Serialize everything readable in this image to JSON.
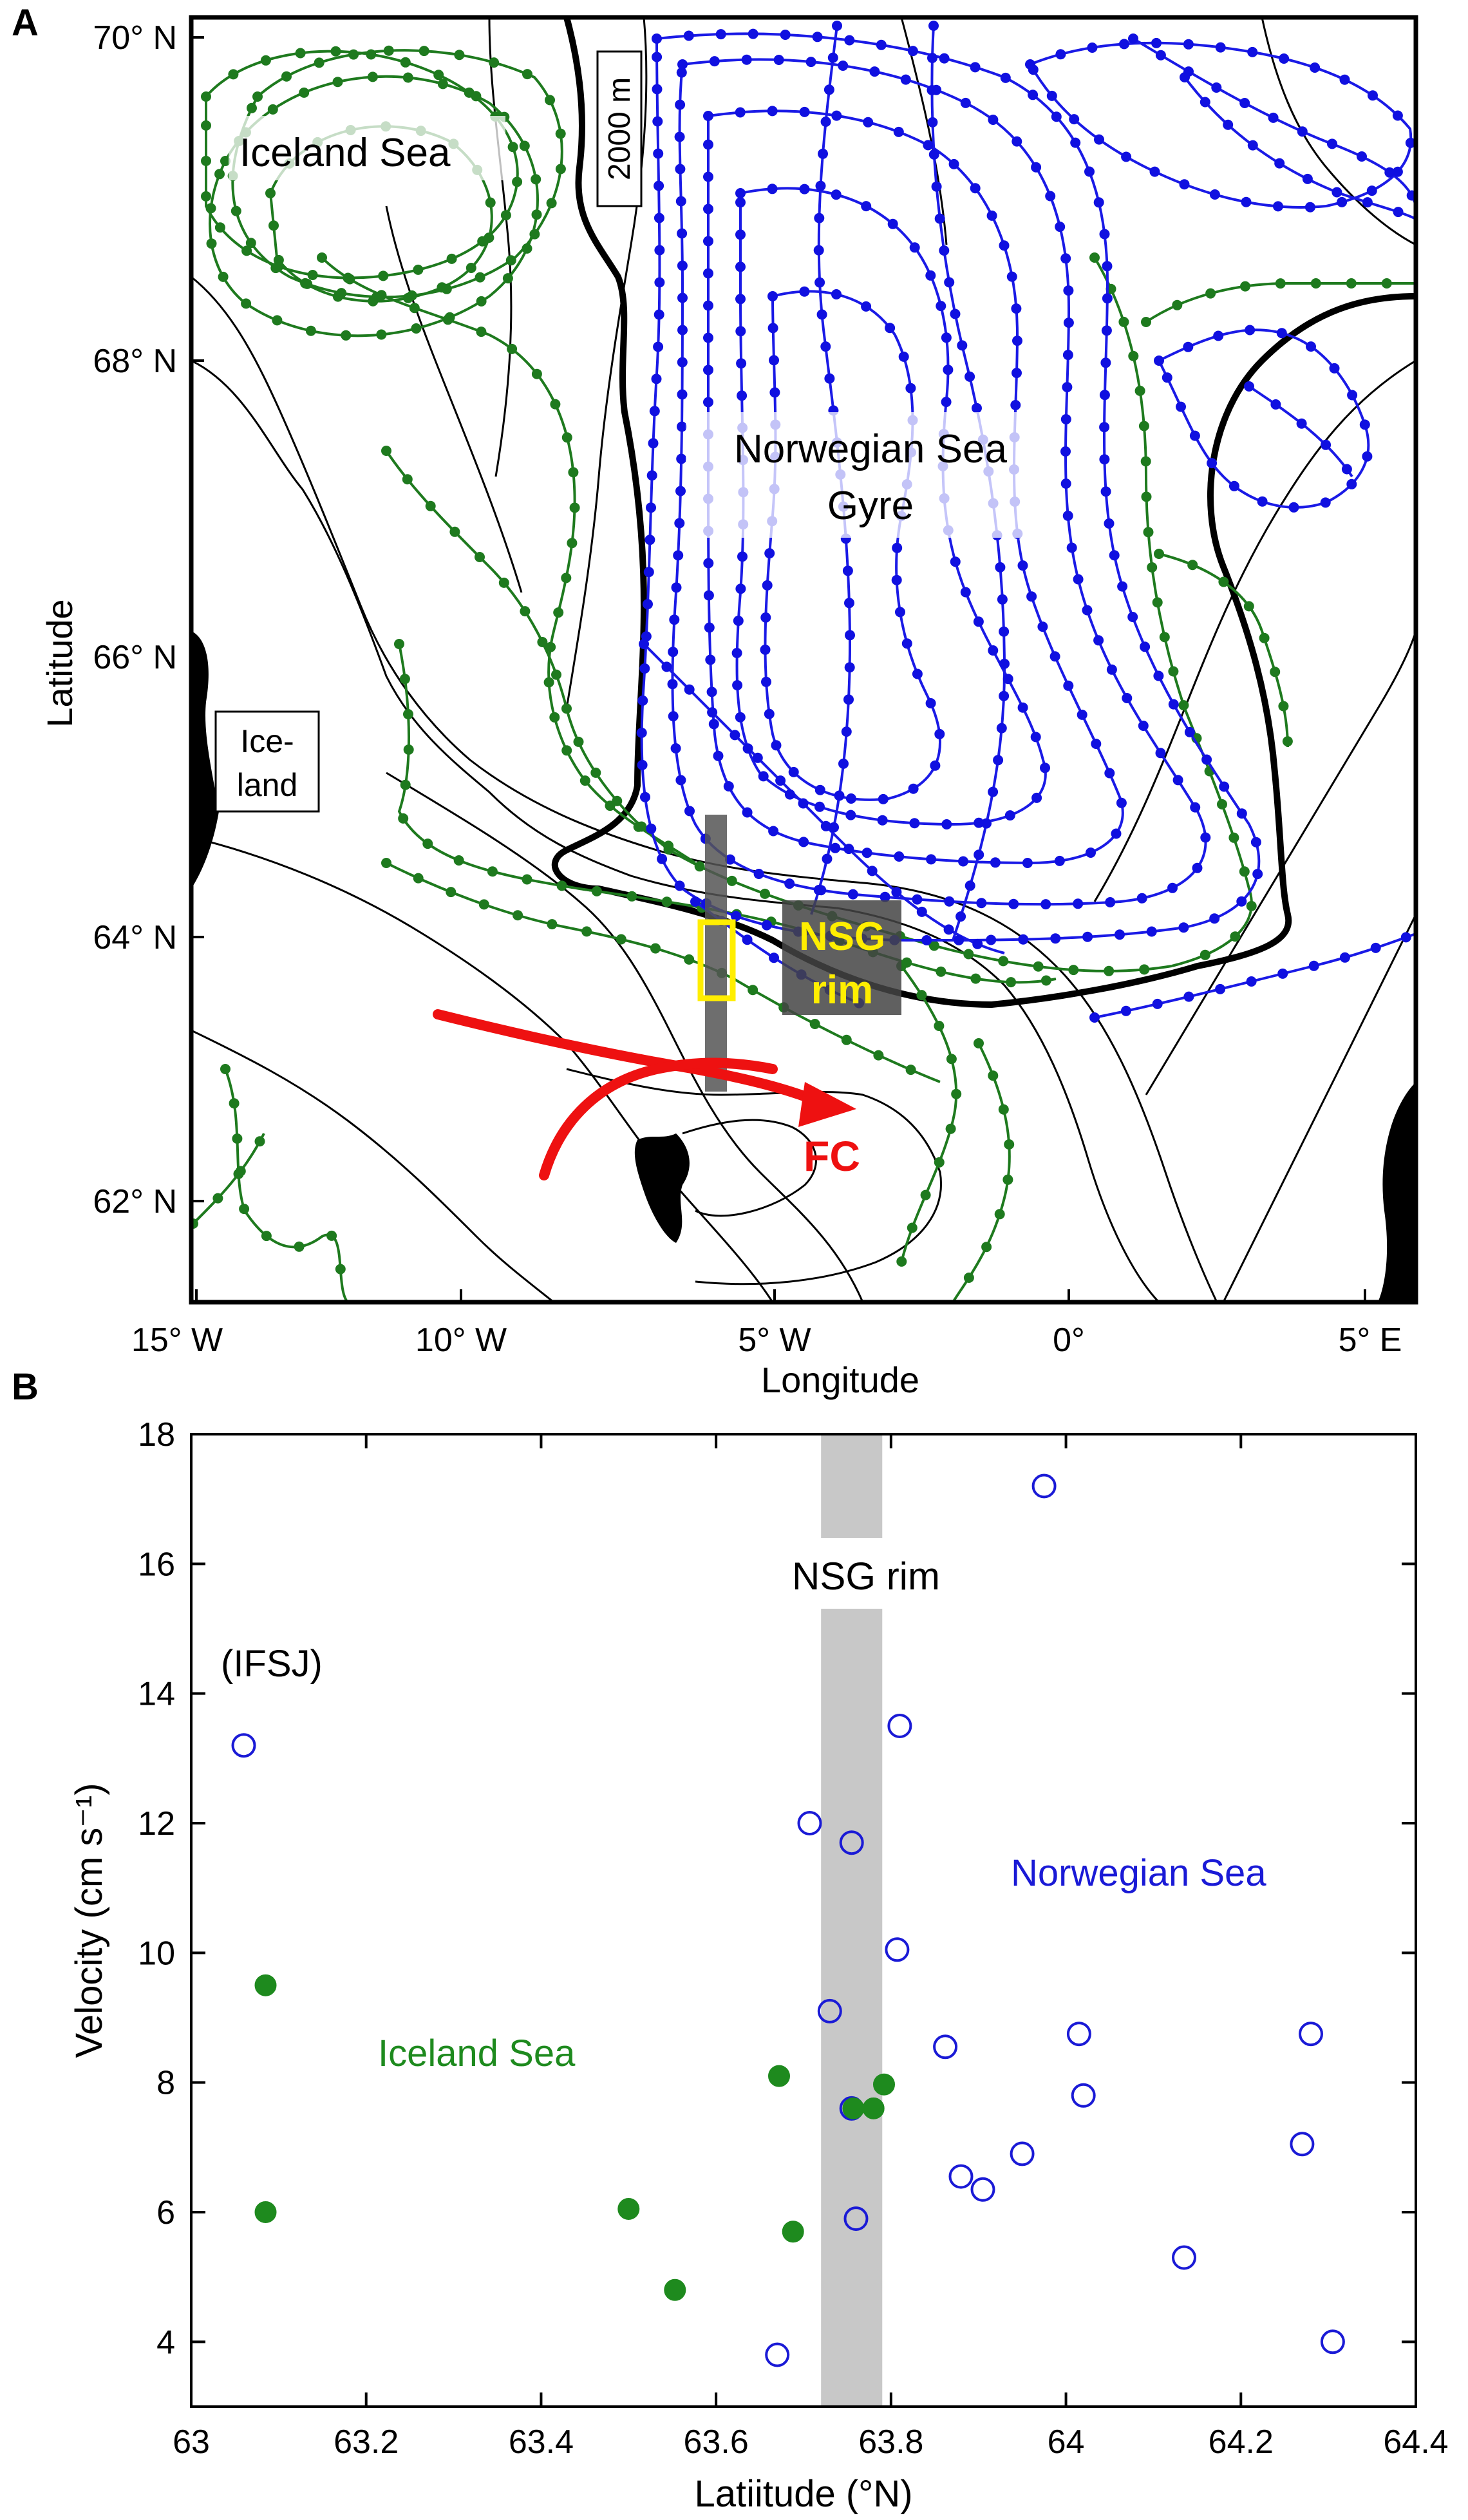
{
  "panel_a": {
    "label": "A",
    "xlabel": "Longitude",
    "ylabel": "Latitude",
    "x_ticks": [
      "15° W",
      "10° W",
      "5° W",
      "0°",
      "5° E"
    ],
    "y_ticks": [
      "70° N",
      "68° N",
      "66° N",
      "64° N",
      "62° N"
    ],
    "labels": {
      "iceland_sea": "Iceland Sea",
      "norwegian_sea_gyre_1": "Norwegian Sea",
      "norwegian_sea_gyre_2": "Gyre",
      "iceland_1": "Ice-",
      "iceland_2": "land",
      "isobath": "2000 m",
      "nsg_1": "NSG",
      "nsg_2": "rim",
      "fc": "FC"
    },
    "colors": {
      "norwegian_sea": "#1010e0",
      "iceland_sea": "#1e7a1e",
      "fc_arrow": "#ee1111",
      "box": "#ffee00",
      "nsg_text": "#ffee00"
    },
    "icons": {
      "fc_arrow": "red-curved-arrow",
      "study_box": "yellow-rectangle",
      "section_line": "gray-vertical-band"
    }
  },
  "panel_b": {
    "label": "B",
    "annotations": {
      "nsg_rim": "NSG rim",
      "ifsj": "(IFSJ)",
      "norwegian_sea": "Norwegian Sea",
      "iceland_sea": "Iceland Sea"
    }
  },
  "chart_data": {
    "type": "scatter",
    "xlabel": "Latiitude (°N)",
    "ylabel": "Velocity (cm s⁻¹)",
    "xlim": [
      63,
      64.4
    ],
    "ylim": [
      3,
      18
    ],
    "x_ticks": [
      63,
      63.2,
      63.4,
      63.6,
      63.8,
      64,
      64.2,
      64.4
    ],
    "y_ticks": [
      4,
      6,
      8,
      10,
      12,
      14,
      16,
      18
    ],
    "x_tick_labels": [
      "63",
      "63.2",
      "63.4",
      "63.6",
      "63.8",
      "64",
      "64.2",
      "64.4"
    ],
    "y_tick_labels": [
      "4",
      "6",
      "8",
      "10",
      "12",
      "14",
      "16",
      "18"
    ],
    "shaded_band": {
      "x": [
        63.72,
        63.79
      ],
      "color": "#c8c8c8"
    },
    "grid": false,
    "series": [
      {
        "name": "Norwegian Sea",
        "color": "#1a1ad6",
        "marker": "open-circle",
        "points": [
          [
            63.06,
            13.2
          ],
          [
            63.67,
            3.8
          ],
          [
            63.707,
            12.0
          ],
          [
            63.73,
            9.1
          ],
          [
            63.755,
            11.7
          ],
          [
            63.755,
            7.6
          ],
          [
            63.76,
            5.9
          ],
          [
            63.807,
            10.05
          ],
          [
            63.81,
            13.5
          ],
          [
            63.862,
            8.55
          ],
          [
            63.88,
            6.55
          ],
          [
            63.905,
            6.35
          ],
          [
            63.95,
            6.9
          ],
          [
            63.975,
            17.2
          ],
          [
            64.015,
            8.75
          ],
          [
            64.02,
            7.8
          ],
          [
            64.135,
            5.3
          ],
          [
            64.27,
            7.05
          ],
          [
            64.28,
            8.75
          ],
          [
            64.305,
            4.0
          ]
        ]
      },
      {
        "name": "Iceland Sea",
        "color": "#1e8a1e",
        "marker": "filled-circle",
        "points": [
          [
            63.085,
            9.5
          ],
          [
            63.085,
            6.0
          ],
          [
            63.5,
            6.05
          ],
          [
            63.553,
            4.8
          ],
          [
            63.672,
            8.1
          ],
          [
            63.688,
            5.7
          ],
          [
            63.757,
            7.6
          ],
          [
            63.78,
            7.6
          ],
          [
            63.792,
            7.97
          ]
        ]
      }
    ]
  }
}
